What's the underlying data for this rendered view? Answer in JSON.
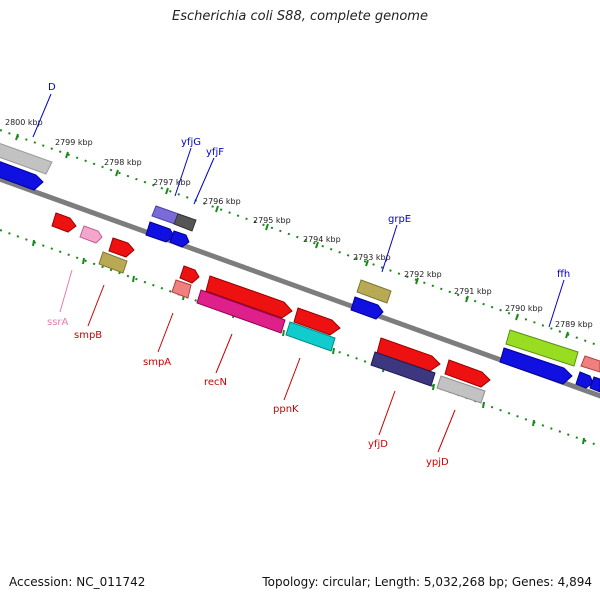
{
  "title": "Escherichia coli S88, complete genome",
  "footer": {
    "accession": "Accession: NC_011742",
    "summary": "Topology: circular; Length: 5,032,268 bp; Genes: 4,894"
  },
  "colors": {
    "backbone": "#7d7d7d",
    "tick": "#1a8a1a",
    "label_upper": "#0000cc",
    "label_lower": "#cc0000",
    "label_rna": "#e87bb0"
  },
  "ticks": [
    "2800 kbp",
    "2799 kbp",
    "2798 kbp",
    "2797 kbp",
    "2796 kbp",
    "2795 kbp",
    "2794 kbp",
    "2793 kbp",
    "2792 kbp",
    "2791 kbp",
    "2790 kbp",
    "2789 kbp"
  ],
  "gene_labels": {
    "D": "D",
    "yfjG": "yfjG",
    "yfjF": "yfjF",
    "grpE": "grpE",
    "ffh": "ffh",
    "ssrA": "ssrA",
    "smpB": "smpB",
    "smpA": "smpA",
    "recN": "recN",
    "ppnK": "ppnK",
    "yfjD": "yfjD",
    "ypjD": "ypjD"
  }
}
